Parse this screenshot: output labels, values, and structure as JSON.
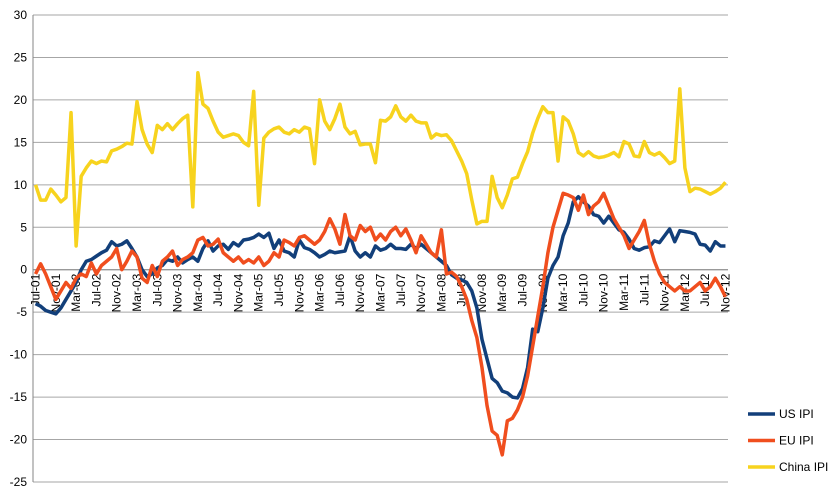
{
  "chart_data": {
    "type": "line",
    "categories": [
      "Jul-01",
      null,
      null,
      null,
      "Nov-01",
      null,
      null,
      null,
      "Mar-02",
      null,
      null,
      null,
      "Jul-02",
      null,
      null,
      null,
      "Nov-02",
      null,
      null,
      null,
      "Mar-03",
      null,
      null,
      null,
      "Jul-03",
      null,
      null,
      null,
      "Nov-03",
      null,
      null,
      null,
      "Mar-04",
      null,
      null,
      null,
      "Jul-04",
      null,
      null,
      null,
      "Nov-04",
      null,
      null,
      null,
      "Mar-05",
      null,
      null,
      null,
      "Jul-05",
      null,
      null,
      null,
      "Nov-05",
      null,
      null,
      null,
      "Mar-06",
      null,
      null,
      null,
      "Jul-06",
      null,
      null,
      null,
      "Nov-06",
      null,
      null,
      null,
      "Mar-07",
      null,
      null,
      null,
      "Jul-07",
      null,
      null,
      null,
      "Nov-07",
      null,
      null,
      null,
      "Mar-08",
      null,
      null,
      null,
      "Jul-08",
      null,
      null,
      null,
      "Nov-08",
      null,
      null,
      null,
      "Mar-09",
      null,
      null,
      null,
      "Jul-09",
      null,
      null,
      null,
      "Nov-09",
      null,
      null,
      null,
      "Mar-10",
      null,
      null,
      null,
      "Jul-10",
      null,
      null,
      null,
      "Nov-10",
      null,
      null,
      null,
      "Mar-11",
      null,
      null,
      null,
      "Jul-11",
      null,
      null,
      null,
      "Nov-11",
      null,
      null,
      null,
      "Mar-12",
      null,
      null,
      null,
      "Jul-12",
      null,
      null,
      null,
      "Nov-12"
    ],
    "series": [
      {
        "name": "US IPI",
        "color": "#123f7a",
        "values": [
          -4.0,
          -4.3,
          -4.8,
          -5.0,
          -5.2,
          -4.5,
          -3.5,
          -2.5,
          -1.5,
          0.0,
          1.0,
          1.2,
          1.6,
          2.0,
          2.3,
          3.3,
          2.8,
          3.0,
          3.4,
          2.5,
          1.5,
          0.0,
          -0.8,
          -0.5,
          0.2,
          0.5,
          1.2,
          1.0,
          1.5,
          0.8,
          1.2,
          1.5,
          1.0,
          2.5,
          3.4,
          2.2,
          2.8,
          3.0,
          2.4,
          3.2,
          2.8,
          3.5,
          3.6,
          3.8,
          4.2,
          3.8,
          4.3,
          2.5,
          3.5,
          2.2,
          2.0,
          1.5,
          3.5,
          2.6,
          2.4,
          2.0,
          1.5,
          1.8,
          2.2,
          2.0,
          2.1,
          2.2,
          4.0,
          2.2,
          1.5,
          2.0,
          1.5,
          2.8,
          2.3,
          2.5,
          3.0,
          2.5,
          2.5,
          2.4,
          3.0,
          2.5,
          3.0,
          2.5,
          2.0,
          1.5,
          1.0,
          0.5,
          -0.6,
          -1.0,
          -1.2,
          -1.5,
          -2.5,
          -4.5,
          -8.2,
          -10.5,
          -12.8,
          -13.3,
          -14.3,
          -14.5,
          -15.0,
          -15.1,
          -14.0,
          -11.5,
          -7.0,
          -7.3,
          -4.5,
          -1.0,
          0.5,
          1.5,
          4.0,
          5.5,
          8.0,
          8.6,
          8.0,
          7.5,
          6.5,
          6.3,
          5.5,
          6.3,
          5.5,
          4.7,
          4.4,
          3.6,
          2.5,
          2.3,
          2.6,
          2.7,
          3.4,
          3.2,
          4.0,
          4.8,
          3.3,
          4.6,
          4.5,
          4.4,
          4.2,
          3.0,
          2.9,
          2.2,
          3.3,
          2.8,
          2.8
        ]
      },
      {
        "name": "EU IPI",
        "color": "#f04e1e",
        "values": [
          -0.5,
          0.7,
          -0.5,
          -2.0,
          -3.5,
          -2.5,
          -1.5,
          -2.2,
          -1.0,
          -0.5,
          -0.8,
          0.8,
          -0.5,
          0.5,
          1.0,
          1.5,
          2.5,
          0.0,
          1.0,
          2.2,
          1.5,
          -1.0,
          -1.5,
          0.5,
          -0.8,
          1.0,
          1.5,
          2.2,
          0.5,
          1.2,
          1.5,
          2.0,
          3.5,
          3.8,
          2.8,
          3.0,
          3.6,
          2.0,
          1.5,
          1.0,
          1.5,
          0.8,
          1.2,
          0.8,
          1.5,
          0.5,
          1.0,
          2.0,
          1.5,
          3.5,
          3.2,
          2.8,
          3.8,
          4.0,
          3.5,
          3.0,
          3.5,
          4.5,
          6.0,
          4.8,
          3.0,
          6.5,
          4.0,
          3.5,
          5.2,
          4.5,
          5.0,
          3.5,
          4.2,
          3.5,
          4.5,
          5.0,
          4.0,
          4.8,
          3.5,
          2.0,
          4.0,
          3.0,
          2.0,
          1.5,
          4.7,
          -0.5,
          -0.3,
          -0.8,
          -2.0,
          -3.5,
          -6.0,
          -8.0,
          -11.5,
          -16.0,
          -19.0,
          -19.5,
          -21.8,
          -17.8,
          -17.5,
          -16.5,
          -15.0,
          -12.5,
          -9.0,
          -5.5,
          -2.0,
          2.0,
          5.0,
          7.0,
          9.0,
          8.8,
          8.5,
          7.0,
          8.8,
          6.5,
          7.5,
          8.0,
          9.0,
          7.5,
          6.0,
          5.0,
          4.0,
          2.5,
          3.5,
          4.5,
          5.8,
          3.0,
          1.0,
          -0.5,
          -1.5,
          -2.0,
          -2.5,
          -2.0,
          -2.5,
          -2.5,
          -2.0,
          -1.5,
          -2.5,
          -2.0,
          -1.0,
          -2.0,
          -3.2
        ]
      },
      {
        "name": "China IPI",
        "color": "#f7d31e",
        "values": [
          10,
          8.2,
          8.2,
          9.5,
          8.8,
          8.0,
          8.5,
          18.5,
          2.8,
          11,
          12,
          12.8,
          12.5,
          12.8,
          12.7,
          14,
          14.2,
          14.5,
          14.9,
          14.8,
          19.8,
          16.5,
          14.8,
          13.8,
          17,
          16.5,
          17.2,
          16.5,
          17.2,
          17.8,
          18.2,
          7.4,
          23.2,
          19.5,
          19.0,
          17.5,
          16.2,
          15.6,
          15.8,
          16.0,
          15.8,
          15.0,
          14.6,
          21,
          7.6,
          15.5,
          16.2,
          16.6,
          16.8,
          16.2,
          16.0,
          16.5,
          16.2,
          16.8,
          16.6,
          12.5,
          20.0,
          17.5,
          16.5,
          17.8,
          19.5,
          16.8,
          16.0,
          16.3,
          14.7,
          14.8,
          14.8,
          12.6,
          17.6,
          17.5,
          18.0,
          19.3,
          18.0,
          17.5,
          18.2,
          17.5,
          17.3,
          17.3,
          15.5,
          16.0,
          15.8,
          15.9,
          15.2,
          14.0,
          12.8,
          11.3,
          8.2,
          5.4,
          5.7,
          5.7,
          11.0,
          8.5,
          7.3,
          8.8,
          10.7,
          10.9,
          12.5,
          13.9,
          16.1,
          17.8,
          19.2,
          18.5,
          18.5,
          12.8,
          18.0,
          17.5,
          16.0,
          13.8,
          13.4,
          13.9,
          13.4,
          13.2,
          13.3,
          13.5,
          13.8,
          13.3,
          15.1,
          14.8,
          13.4,
          13.3,
          15.1,
          13.8,
          13.5,
          13.8,
          13.2,
          12.5,
          12.8,
          21.3,
          12.0,
          9.2,
          9.6,
          9.5,
          9.2,
          8.9,
          9.2,
          9.6,
          10.3
        ]
      }
    ],
    "ylim": [
      -25,
      30
    ],
    "yticks": [
      -25,
      -20,
      -15,
      -10,
      -5,
      0,
      5,
      10,
      15,
      20,
      25,
      30
    ],
    "grid": true,
    "legend": "right"
  }
}
